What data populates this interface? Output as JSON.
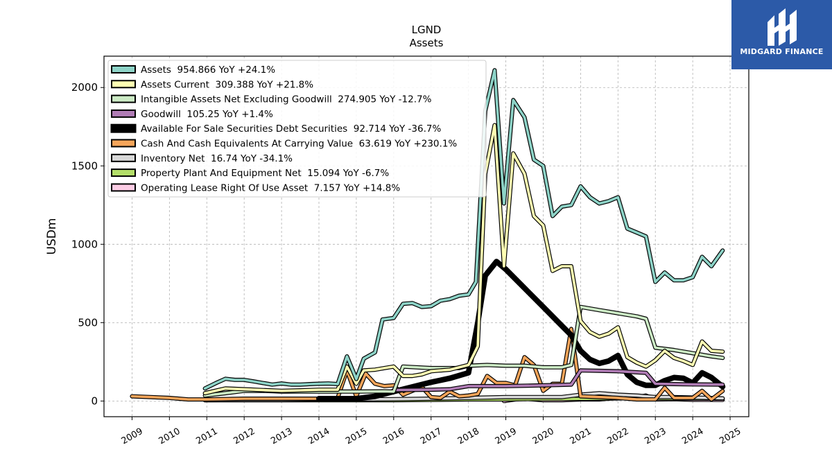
{
  "chart_data": {
    "type": "line",
    "title": "LGND",
    "subtitle": "Assets",
    "ylabel": "USDm",
    "xlim": [
      2008.25,
      2025.5
    ],
    "ylim": [
      -100,
      2200
    ],
    "yticks": [
      0,
      500,
      1000,
      1500,
      2000
    ],
    "xticks": [
      "2009",
      "2010",
      "2011",
      "2012",
      "2013",
      "2014",
      "2015",
      "2016",
      "2017",
      "2018",
      "2019",
      "2020",
      "2021",
      "2022",
      "2023",
      "2024",
      "2025"
    ],
    "grid": true,
    "legend_position": "top-left",
    "series": [
      {
        "name": "Assets",
        "legend": "Assets  954.866 YoY +24.1%",
        "color": "#8dd3c7",
        "points": [
          [
            2010.95,
            80
          ],
          [
            2011.25,
            115
          ],
          [
            2011.5,
            142
          ],
          [
            2011.75,
            135
          ],
          [
            2012.0,
            135
          ],
          [
            2012.25,
            125
          ],
          [
            2012.5,
            115
          ],
          [
            2012.75,
            105
          ],
          [
            2013.0,
            112
          ],
          [
            2013.25,
            105
          ],
          [
            2013.5,
            105
          ],
          [
            2013.75,
            108
          ],
          [
            2014.0,
            110
          ],
          [
            2014.25,
            112
          ],
          [
            2014.5,
            108
          ],
          [
            2014.75,
            285
          ],
          [
            2015.0,
            140
          ],
          [
            2015.2,
            270
          ],
          [
            2015.5,
            310
          ],
          [
            2015.7,
            520
          ],
          [
            2016.0,
            530
          ],
          [
            2016.25,
            620
          ],
          [
            2016.5,
            625
          ],
          [
            2016.75,
            600
          ],
          [
            2017.0,
            605
          ],
          [
            2017.25,
            640
          ],
          [
            2017.5,
            650
          ],
          [
            2017.75,
            672
          ],
          [
            2018.0,
            680
          ],
          [
            2018.2,
            760
          ],
          [
            2018.45,
            1850
          ],
          [
            2018.7,
            2110
          ],
          [
            2018.95,
            1260
          ],
          [
            2019.2,
            1920
          ],
          [
            2019.5,
            1810
          ],
          [
            2019.75,
            1540
          ],
          [
            2020.0,
            1500
          ],
          [
            2020.25,
            1180
          ],
          [
            2020.5,
            1240
          ],
          [
            2020.75,
            1250
          ],
          [
            2021.0,
            1370
          ],
          [
            2021.25,
            1300
          ],
          [
            2021.5,
            1260
          ],
          [
            2021.75,
            1275
          ],
          [
            2022.0,
            1300
          ],
          [
            2022.25,
            1100
          ],
          [
            2022.5,
            1075
          ],
          [
            2022.75,
            1050
          ],
          [
            2023.0,
            760
          ],
          [
            2023.25,
            820
          ],
          [
            2023.5,
            770
          ],
          [
            2023.75,
            770
          ],
          [
            2024.0,
            790
          ],
          [
            2024.25,
            920
          ],
          [
            2024.5,
            860
          ],
          [
            2024.8,
            960
          ]
        ]
      },
      {
        "name": "Assets Current",
        "legend": "Assets Current  309.388 YoY +21.8%",
        "color": "#ffffb3",
        "points": [
          [
            2010.95,
            50
          ],
          [
            2011.5,
            80
          ],
          [
            2012.0,
            75
          ],
          [
            2012.5,
            70
          ],
          [
            2013.0,
            65
          ],
          [
            2013.5,
            68
          ],
          [
            2014.0,
            72
          ],
          [
            2014.5,
            72
          ],
          [
            2014.75,
            220
          ],
          [
            2015.0,
            110
          ],
          [
            2015.2,
            195
          ],
          [
            2015.5,
            200
          ],
          [
            2015.75,
            210
          ],
          [
            2016.0,
            220
          ],
          [
            2016.25,
            160
          ],
          [
            2016.5,
            160
          ],
          [
            2016.75,
            170
          ],
          [
            2017.0,
            190
          ],
          [
            2017.5,
            200
          ],
          [
            2018.0,
            230
          ],
          [
            2018.25,
            350
          ],
          [
            2018.45,
            1450
          ],
          [
            2018.7,
            1760
          ],
          [
            2018.95,
            860
          ],
          [
            2019.2,
            1580
          ],
          [
            2019.5,
            1450
          ],
          [
            2019.75,
            1180
          ],
          [
            2020.0,
            1120
          ],
          [
            2020.25,
            830
          ],
          [
            2020.5,
            860
          ],
          [
            2020.75,
            860
          ],
          [
            2021.0,
            510
          ],
          [
            2021.25,
            440
          ],
          [
            2021.5,
            410
          ],
          [
            2021.75,
            430
          ],
          [
            2022.0,
            470
          ],
          [
            2022.25,
            280
          ],
          [
            2022.5,
            245
          ],
          [
            2022.75,
            220
          ],
          [
            2023.0,
            260
          ],
          [
            2023.25,
            320
          ],
          [
            2023.5,
            275
          ],
          [
            2023.75,
            255
          ],
          [
            2024.0,
            230
          ],
          [
            2024.25,
            380
          ],
          [
            2024.5,
            320
          ],
          [
            2024.8,
            315
          ]
        ]
      },
      {
        "name": "Intangible Assets Net Excluding Goodwill",
        "legend": "Intangible Assets Net Excluding Goodwill  274.905 YoY -12.7%",
        "color": "#ccebc5",
        "points": [
          [
            2010.95,
            35
          ],
          [
            2011.5,
            50
          ],
          [
            2012.0,
            65
          ],
          [
            2012.5,
            65
          ],
          [
            2013.0,
            60
          ],
          [
            2014.0,
            60
          ],
          [
            2015.0,
            60
          ],
          [
            2015.75,
            62
          ],
          [
            2016.0,
            60
          ],
          [
            2016.25,
            220
          ],
          [
            2017.0,
            210
          ],
          [
            2017.75,
            210
          ],
          [
            2018.0,
            225
          ],
          [
            2018.5,
            230
          ],
          [
            2019.0,
            225
          ],
          [
            2019.5,
            225
          ],
          [
            2020.0,
            215
          ],
          [
            2020.5,
            215
          ],
          [
            2020.75,
            230
          ],
          [
            2021.0,
            600
          ],
          [
            2021.5,
            580
          ],
          [
            2022.0,
            560
          ],
          [
            2022.5,
            540
          ],
          [
            2022.75,
            525
          ],
          [
            2023.0,
            340
          ],
          [
            2023.5,
            325
          ],
          [
            2024.0,
            305
          ],
          [
            2024.5,
            285
          ],
          [
            2024.8,
            275
          ]
        ]
      },
      {
        "name": "Goodwill",
        "legend": "Goodwill  105.25 YoY +1.4%",
        "color": "#b07cb5",
        "points": [
          [
            2016.0,
            70
          ],
          [
            2017.0,
            72
          ],
          [
            2017.5,
            75
          ],
          [
            2018.0,
            95
          ],
          [
            2019.0,
            95
          ],
          [
            2020.0,
            100
          ],
          [
            2020.75,
            105
          ],
          [
            2021.0,
            195
          ],
          [
            2022.0,
            190
          ],
          [
            2022.75,
            180
          ],
          [
            2023.0,
            110
          ],
          [
            2023.5,
            108
          ],
          [
            2024.0,
            106
          ],
          [
            2024.8,
            105
          ]
        ]
      },
      {
        "name": "Available For Sale Securities Debt Securities",
        "legend": "Available For Sale Securities Debt Securities  92.714 YoY -36.7%",
        "color": "#000000",
        "thick": true,
        "points": [
          [
            2014.0,
            15
          ],
          [
            2015.0,
            15
          ],
          [
            2015.5,
            30
          ],
          [
            2016.0,
            60
          ],
          [
            2016.5,
            90
          ],
          [
            2017.0,
            120
          ],
          [
            2017.5,
            145
          ],
          [
            2018.0,
            180
          ],
          [
            2018.25,
            500
          ],
          [
            2018.45,
            800
          ],
          [
            2018.75,
            890
          ],
          [
            2019.0,
            840
          ],
          [
            2019.5,
            720
          ],
          [
            2020.0,
            600
          ],
          [
            2020.5,
            480
          ],
          [
            2020.75,
            420
          ],
          [
            2021.0,
            320
          ],
          [
            2021.25,
            265
          ],
          [
            2021.5,
            240
          ],
          [
            2021.75,
            255
          ],
          [
            2022.0,
            290
          ],
          [
            2022.25,
            170
          ],
          [
            2022.5,
            120
          ],
          [
            2022.75,
            100
          ],
          [
            2023.0,
            100
          ],
          [
            2023.25,
            130
          ],
          [
            2023.5,
            150
          ],
          [
            2023.75,
            145
          ],
          [
            2024.0,
            115
          ],
          [
            2024.25,
            180
          ],
          [
            2024.5,
            150
          ],
          [
            2024.8,
            92
          ]
        ]
      },
      {
        "name": "Cash And Cash Equivalents At Carrying Value",
        "legend": "Cash And Cash Equivalents At Carrying Value  63.619 YoY +230.1%",
        "color": "#f5a55a",
        "points": [
          [
            2009.0,
            30
          ],
          [
            2009.5,
            25
          ],
          [
            2010.0,
            20
          ],
          [
            2010.5,
            10
          ],
          [
            2011.0,
            10
          ],
          [
            2012.0,
            15
          ],
          [
            2013.0,
            15
          ],
          [
            2014.0,
            15
          ],
          [
            2014.5,
            20
          ],
          [
            2014.75,
            195
          ],
          [
            2015.0,
            30
          ],
          [
            2015.25,
            175
          ],
          [
            2015.5,
            110
          ],
          [
            2015.75,
            95
          ],
          [
            2016.0,
            100
          ],
          [
            2016.25,
            40
          ],
          [
            2016.5,
            65
          ],
          [
            2016.75,
            90
          ],
          [
            2017.0,
            25
          ],
          [
            2017.25,
            20
          ],
          [
            2017.5,
            60
          ],
          [
            2017.75,
            30
          ],
          [
            2018.0,
            35
          ],
          [
            2018.25,
            45
          ],
          [
            2018.5,
            160
          ],
          [
            2018.75,
            115
          ],
          [
            2019.0,
            115
          ],
          [
            2019.25,
            100
          ],
          [
            2019.5,
            280
          ],
          [
            2019.75,
            230
          ],
          [
            2020.0,
            65
          ],
          [
            2020.25,
            110
          ],
          [
            2020.5,
            110
          ],
          [
            2020.75,
            460
          ],
          [
            2021.0,
            30
          ],
          [
            2021.5,
            25
          ],
          [
            2022.0,
            20
          ],
          [
            2022.5,
            10
          ],
          [
            2023.0,
            10
          ],
          [
            2023.25,
            85
          ],
          [
            2023.5,
            20
          ],
          [
            2024.0,
            20
          ],
          [
            2024.25,
            65
          ],
          [
            2024.5,
            10
          ],
          [
            2024.8,
            64
          ]
        ]
      },
      {
        "name": "Inventory Net",
        "legend": "Inventory Net  16.74 YoY -34.1%",
        "color": "#d9d9d9",
        "points": [
          [
            2010.95,
            5
          ],
          [
            2012.0,
            8
          ],
          [
            2013.0,
            8
          ],
          [
            2014.0,
            10
          ],
          [
            2015.0,
            10
          ],
          [
            2016.0,
            12
          ],
          [
            2017.0,
            15
          ],
          [
            2018.0,
            20
          ],
          [
            2019.0,
            25
          ],
          [
            2020.0,
            25
          ],
          [
            2020.5,
            25
          ],
          [
            2021.0,
            40
          ],
          [
            2021.5,
            50
          ],
          [
            2022.0,
            40
          ],
          [
            2022.5,
            35
          ],
          [
            2023.0,
            25
          ],
          [
            2023.5,
            25
          ],
          [
            2024.0,
            22
          ],
          [
            2024.8,
            17
          ]
        ]
      },
      {
        "name": "Property Plant And Equipment Net",
        "legend": "Property Plant And Equipment Net  15.094 YoY -6.7%",
        "color": "#b3de69",
        "points": [
          [
            2010.95,
            5
          ],
          [
            2012.0,
            5
          ],
          [
            2013.0,
            5
          ],
          [
            2014.0,
            5
          ],
          [
            2015.0,
            5
          ],
          [
            2016.0,
            5
          ],
          [
            2017.0,
            7
          ],
          [
            2018.0,
            10
          ],
          [
            2018.9,
            10
          ],
          [
            2019.5,
            12
          ],
          [
            2020.5,
            13
          ],
          [
            2021.5,
            15
          ],
          [
            2022.5,
            18
          ],
          [
            2023.5,
            16
          ],
          [
            2024.8,
            15
          ]
        ]
      },
      {
        "name": "Operating Lease Right Of Use Asset",
        "legend": "Operating Lease Right Of Use Asset  7.157 YoY +14.8%",
        "color": "#fccde5",
        "points": [
          [
            2018.95,
            0
          ],
          [
            2019.25,
            10
          ],
          [
            2019.5,
            15
          ],
          [
            2019.75,
            10
          ],
          [
            2020.0,
            5
          ],
          [
            2020.5,
            5
          ],
          [
            2021.0,
            10
          ],
          [
            2021.5,
            10
          ],
          [
            2022.0,
            20
          ],
          [
            2022.5,
            25
          ],
          [
            2022.75,
            35
          ],
          [
            2023.0,
            10
          ],
          [
            2023.5,
            12
          ],
          [
            2024.0,
            8
          ],
          [
            2024.8,
            7
          ]
        ]
      }
    ]
  },
  "logo": {
    "text": "MIDGARD FINANCE",
    "color": "#2c5aa8"
  }
}
